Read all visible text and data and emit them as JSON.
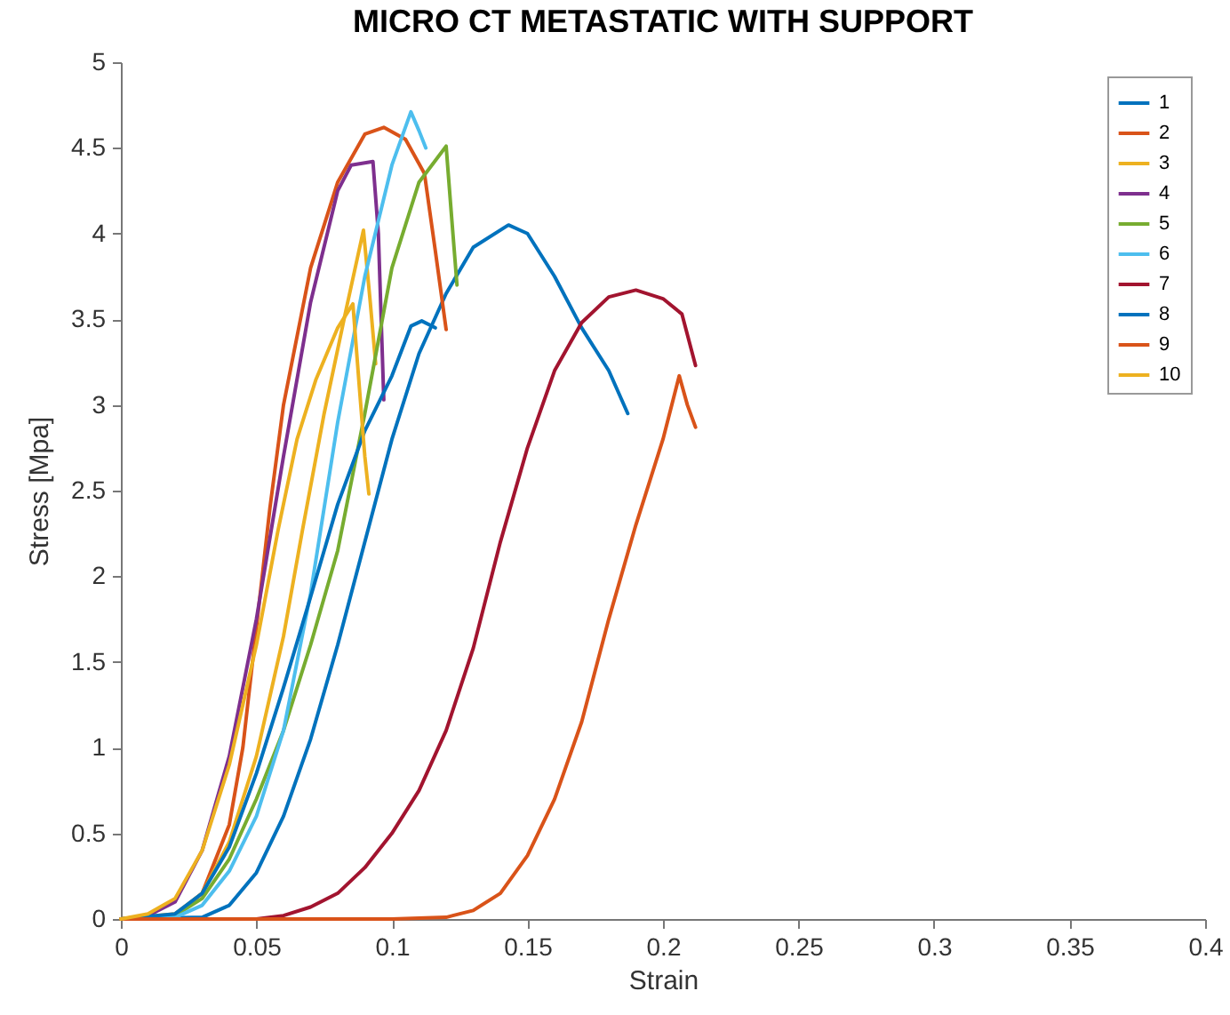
{
  "chart_data": {
    "type": "line",
    "title": "MICRO CT METASTATIC WITH SUPPORT",
    "xlabel": "Strain",
    "ylabel": "Stress [Mpa]",
    "xlim": [
      0,
      0.4
    ],
    "ylim": [
      0,
      5
    ],
    "xticks": [
      0,
      0.05,
      0.1,
      0.15,
      0.2,
      0.25,
      0.3,
      0.35,
      0.4
    ],
    "yticks": [
      0,
      0.5,
      1,
      1.5,
      2,
      2.5,
      3,
      3.5,
      4,
      4.5,
      5
    ],
    "grid": false,
    "legend": "top right",
    "line_style": "solid",
    "marker": "none",
    "series": [
      {
        "name": "1",
        "color": "#0072bd",
        "x": [
          0,
          0.03,
          0.04,
          0.05,
          0.06,
          0.07,
          0.08,
          0.09,
          0.1,
          0.11,
          0.12,
          0.13,
          0.143,
          0.15,
          0.16,
          0.17,
          0.18,
          0.187
        ],
        "values": [
          0,
          0.01,
          0.08,
          0.27,
          0.6,
          1.05,
          1.6,
          2.2,
          2.8,
          3.3,
          3.65,
          3.92,
          4.05,
          4.0,
          3.75,
          3.45,
          3.2,
          2.95
        ]
      },
      {
        "name": "2",
        "color": "#d95319",
        "x": [
          0,
          0.02,
          0.03,
          0.04,
          0.045,
          0.05,
          0.055,
          0.06,
          0.07,
          0.08,
          0.09,
          0.097,
          0.105,
          0.112,
          0.116,
          0.12
        ],
        "values": [
          0,
          0.02,
          0.15,
          0.55,
          1.0,
          1.7,
          2.4,
          3.0,
          3.8,
          4.3,
          4.58,
          4.62,
          4.55,
          4.35,
          3.9,
          3.44
        ]
      },
      {
        "name": "3",
        "color": "#edb120",
        "x": [
          0,
          0.02,
          0.03,
          0.04,
          0.05,
          0.06,
          0.067,
          0.075,
          0.083,
          0.0895,
          0.092,
          0.094
        ],
        "values": [
          0,
          0.03,
          0.15,
          0.45,
          0.95,
          1.65,
          2.27,
          2.95,
          3.55,
          4.02,
          3.6,
          3.24
        ]
      },
      {
        "name": "4",
        "color": "#7e2f8e",
        "x": [
          0,
          0.01,
          0.02,
          0.03,
          0.04,
          0.05,
          0.06,
          0.07,
          0.08,
          0.085,
          0.093,
          0.095,
          0.097
        ],
        "values": [
          0,
          0.02,
          0.1,
          0.4,
          0.95,
          1.75,
          2.7,
          3.6,
          4.25,
          4.4,
          4.42,
          4.0,
          3.03
        ]
      },
      {
        "name": "5",
        "color": "#77ac30",
        "x": [
          0,
          0.02,
          0.03,
          0.04,
          0.05,
          0.06,
          0.07,
          0.08,
          0.09,
          0.1,
          0.11,
          0.12,
          0.122,
          0.124
        ],
        "values": [
          0,
          0.02,
          0.12,
          0.35,
          0.7,
          1.1,
          1.6,
          2.15,
          2.95,
          3.8,
          4.3,
          4.51,
          4.1,
          3.7
        ]
      },
      {
        "name": "6",
        "color": "#4dbeee",
        "x": [
          0,
          0.02,
          0.03,
          0.04,
          0.05,
          0.06,
          0.07,
          0.08,
          0.09,
          0.1,
          0.107,
          0.11,
          0.1125
        ],
        "values": [
          0,
          0.01,
          0.08,
          0.28,
          0.6,
          1.1,
          1.9,
          2.9,
          3.75,
          4.4,
          4.71,
          4.6,
          4.5
        ]
      },
      {
        "name": "7",
        "color": "#a2142f",
        "x": [
          0,
          0.05,
          0.06,
          0.07,
          0.08,
          0.09,
          0.1,
          0.11,
          0.12,
          0.13,
          0.14,
          0.15,
          0.16,
          0.17,
          0.18,
          0.19,
          0.2,
          0.207,
          0.212
        ],
        "values": [
          0,
          0,
          0.02,
          0.07,
          0.15,
          0.3,
          0.5,
          0.75,
          1.1,
          1.58,
          2.2,
          2.75,
          3.2,
          3.48,
          3.63,
          3.67,
          3.62,
          3.53,
          3.23
        ]
      },
      {
        "name": "8",
        "color": "#0072bd",
        "x": [
          0,
          0.02,
          0.03,
          0.04,
          0.05,
          0.06,
          0.07,
          0.08,
          0.09,
          0.1,
          0.107,
          0.111,
          0.116
        ],
        "values": [
          0,
          0.03,
          0.15,
          0.42,
          0.85,
          1.35,
          1.88,
          2.42,
          2.85,
          3.17,
          3.46,
          3.49,
          3.45
        ]
      },
      {
        "name": "9",
        "color": "#d95319",
        "x": [
          0,
          0.1,
          0.12,
          0.13,
          0.14,
          0.15,
          0.16,
          0.17,
          0.18,
          0.19,
          0.2,
          0.206,
          0.209,
          0.212
        ],
        "values": [
          0,
          0,
          0.01,
          0.05,
          0.15,
          0.37,
          0.7,
          1.15,
          1.75,
          2.3,
          2.8,
          3.17,
          3.0,
          2.87
        ]
      },
      {
        "name": "10",
        "color": "#edb120",
        "x": [
          0,
          0.01,
          0.02,
          0.03,
          0.04,
          0.05,
          0.058,
          0.065,
          0.072,
          0.08,
          0.0856,
          0.088,
          0.09,
          0.0915
        ],
        "values": [
          0,
          0.03,
          0.12,
          0.4,
          0.9,
          1.6,
          2.27,
          2.8,
          3.15,
          3.45,
          3.59,
          3.1,
          2.7,
          2.48
        ]
      }
    ]
  }
}
